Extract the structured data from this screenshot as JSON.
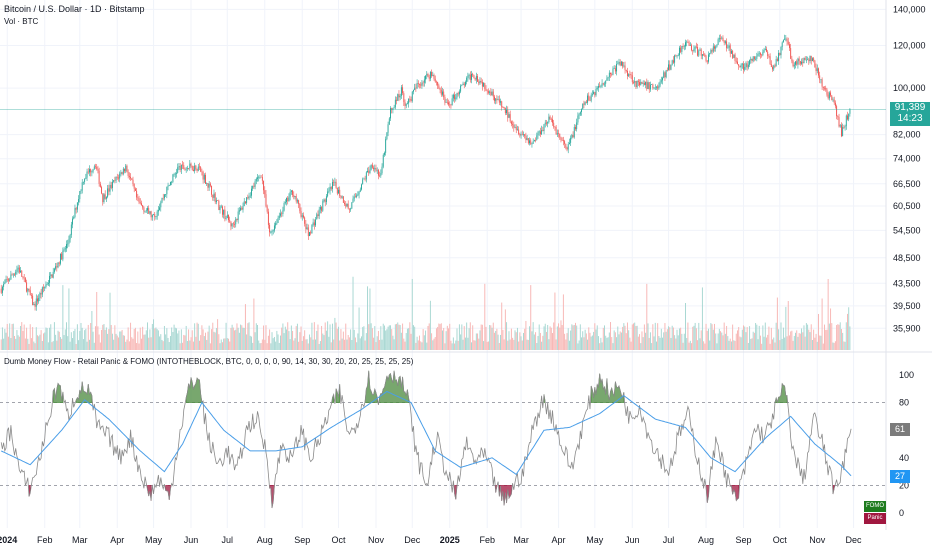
{
  "header": {
    "title": "Bitcoin / U.S. Dollar · 1D · Bitstamp",
    "volume_label": "Vol · BTC",
    "indicator_title": "Dumb Money Flow - Retail Panic & FOMO (INTOTHEBLOCK, BTC, 0, 0, 0, 0, 90, 14, 30, 30, 20, 20, 25, 25, 25, 25)"
  },
  "last_price": {
    "value": "91,389",
    "countdown": "14:23"
  },
  "indicator_values": {
    "current": "61",
    "ma": "27"
  },
  "indicator_legend": {
    "fomo": "FOMO",
    "panic": "Panic"
  },
  "colors": {
    "up": "#26a69a",
    "down": "#ef5350",
    "vol_up": "#a7d7d2",
    "vol_down": "#f7b6b4",
    "line_gray": "#8a8a8a",
    "ma_blue": "#4a9ee8",
    "fomo_fill": "#4b8a3e",
    "panic_fill": "#a0173f",
    "price_line": "#26a69a"
  },
  "chart_data": [
    {
      "type": "candlestick",
      "title": "Bitcoin / U.S. Dollar · 1D · Bitstamp",
      "scale": "log",
      "y_ticks": [
        140000,
        120000,
        100000,
        82000,
        74000,
        66500,
        60500,
        54500,
        48500,
        43500,
        39500,
        35900
      ],
      "y_tick_labels": [
        "140,000",
        "120,000",
        "100,000",
        "82,000",
        "74,000",
        "66,500",
        "60,500",
        "54,500",
        "48,500",
        "43,500",
        "39,500",
        "35,900"
      ],
      "ylim": [
        33000,
        142000
      ],
      "x_tick_labels": [
        "2024",
        "Feb",
        "Mar",
        "Apr",
        "May",
        "Jun",
        "Jul",
        "Aug",
        "Sep",
        "Oct",
        "Nov",
        "Dec",
        "2025",
        "Feb",
        "Mar",
        "Apr",
        "May",
        "Jun",
        "Jul",
        "Aug",
        "Sep",
        "Oct",
        "Nov",
        "Dec"
      ],
      "x_tick_dates": [
        "2024-01-01",
        "2024-02-01",
        "2024-03-01",
        "2024-04-01",
        "2024-05-01",
        "2024-06-01",
        "2024-07-01",
        "2024-08-01",
        "2024-09-01",
        "2024-10-01",
        "2024-11-01",
        "2024-12-01",
        "2025-01-01",
        "2025-02-01",
        "2025-03-01",
        "2025-04-01",
        "2025-05-01",
        "2025-06-01",
        "2025-07-01",
        "2025-08-01",
        "2025-09-01",
        "2025-10-01",
        "2025-11-01",
        "2025-12-01"
      ],
      "close_keypoints": [
        [
          "2023-12-27",
          42500
        ],
        [
          "2024-01-10",
          46500
        ],
        [
          "2024-01-23",
          39500
        ],
        [
          "2024-02-08",
          45500
        ],
        [
          "2024-02-20",
          51500
        ],
        [
          "2024-03-04",
          68000
        ],
        [
          "2024-03-14",
          72500
        ],
        [
          "2024-03-20",
          62500
        ],
        [
          "2024-04-08",
          71500
        ],
        [
          "2024-04-18",
          61500
        ],
        [
          "2024-05-01",
          57500
        ],
        [
          "2024-05-21",
          71000
        ],
        [
          "2024-06-07",
          71500
        ],
        [
          "2024-06-24",
          60500
        ],
        [
          "2024-07-05",
          55500
        ],
        [
          "2024-07-29",
          69500
        ],
        [
          "2024-08-05",
          53500
        ],
        [
          "2024-08-24",
          64500
        ],
        [
          "2024-09-06",
          53500
        ],
        [
          "2024-09-27",
          66500
        ],
        [
          "2024-10-10",
          59500
        ],
        [
          "2024-10-29",
          72500
        ],
        [
          "2024-11-05",
          68500
        ],
        [
          "2024-11-13",
          90500
        ],
        [
          "2024-11-22",
          99000
        ],
        [
          "2024-11-26",
          92500
        ],
        [
          "2024-12-05",
          101000
        ],
        [
          "2024-12-17",
          107000
        ],
        [
          "2024-12-30",
          92500
        ],
        [
          "2025-01-20",
          106500
        ],
        [
          "2025-02-03",
          99000
        ],
        [
          "2025-02-26",
          84000
        ],
        [
          "2025-03-10",
          79000
        ],
        [
          "2025-03-24",
          88000
        ],
        [
          "2025-04-08",
          76500
        ],
        [
          "2025-04-22",
          93500
        ],
        [
          "2025-05-10",
          104000
        ],
        [
          "2025-05-22",
          111500
        ],
        [
          "2025-06-05",
          101500
        ],
        [
          "2025-06-22",
          100500
        ],
        [
          "2025-07-14",
          121500
        ],
        [
          "2025-08-02",
          113500
        ],
        [
          "2025-08-13",
          123500
        ],
        [
          "2025-09-01",
          108500
        ],
        [
          "2025-09-18",
          117500
        ],
        [
          "2025-09-26",
          109000
        ],
        [
          "2025-10-06",
          124500
        ],
        [
          "2025-10-11",
          111500
        ],
        [
          "2025-10-28",
          113000
        ],
        [
          "2025-11-05",
          101000
        ],
        [
          "2025-11-14",
          94500
        ],
        [
          "2025-11-21",
          82500
        ],
        [
          "2025-11-28",
          91389
        ]
      ],
      "last_price": 91389
    },
    {
      "type": "area",
      "title": "Dumb Money Flow - Retail Panic & FOMO (INTOTHEBLOCK, BTC, 0, 0, 0, 0, 90, 14, 30, 30, 20, 20, 25, 25, 25, 25)",
      "y_ticks": [
        0,
        20,
        40,
        60,
        80,
        100
      ],
      "ylim": [
        -5,
        105
      ],
      "upper_threshold": 80,
      "lower_threshold": 20,
      "series": [
        {
          "role": "flow",
          "keypoints": [
            [
              "2023-12-27",
              45
            ],
            [
              "2024-01-04",
              60
            ],
            [
              "2024-01-12",
              28
            ],
            [
              "2024-01-20",
              17
            ],
            [
              "2024-01-28",
              40
            ],
            [
              "2024-02-05",
              72
            ],
            [
              "2024-02-12",
              95
            ],
            [
              "2024-02-20",
              70
            ],
            [
              "2024-02-28",
              88
            ],
            [
              "2024-03-08",
              90
            ],
            [
              "2024-03-16",
              62
            ],
            [
              "2024-03-25",
              55
            ],
            [
              "2024-04-03",
              40
            ],
            [
              "2024-04-12",
              55
            ],
            [
              "2024-04-20",
              30
            ],
            [
              "2024-04-28",
              13
            ],
            [
              "2024-05-06",
              25
            ],
            [
              "2024-05-14",
              10
            ],
            [
              "2024-05-22",
              55
            ],
            [
              "2024-05-30",
              90
            ],
            [
              "2024-06-07",
              98
            ],
            [
              "2024-06-15",
              55
            ],
            [
              "2024-06-23",
              35
            ],
            [
              "2024-07-01",
              45
            ],
            [
              "2024-07-09",
              30
            ],
            [
              "2024-07-17",
              60
            ],
            [
              "2024-07-25",
              70
            ],
            [
              "2024-08-02",
              45
            ],
            [
              "2024-08-07",
              10
            ],
            [
              "2024-08-15",
              50
            ],
            [
              "2024-08-23",
              38
            ],
            [
              "2024-08-31",
              60
            ],
            [
              "2024-09-08",
              40
            ],
            [
              "2024-09-16",
              55
            ],
            [
              "2024-09-24",
              75
            ],
            [
              "2024-10-02",
              88
            ],
            [
              "2024-10-10",
              55
            ],
            [
              "2024-10-18",
              70
            ],
            [
              "2024-10-26",
              98
            ],
            [
              "2024-11-03",
              80
            ],
            [
              "2024-11-11",
              102
            ],
            [
              "2024-11-19",
              99
            ],
            [
              "2024-11-27",
              85
            ],
            [
              "2024-12-05",
              40
            ],
            [
              "2024-12-13",
              20
            ],
            [
              "2024-12-21",
              55
            ],
            [
              "2024-12-29",
              30
            ],
            [
              "2025-01-06",
              12
            ],
            [
              "2025-01-14",
              50
            ],
            [
              "2025-01-22",
              38
            ],
            [
              "2025-01-30",
              42
            ],
            [
              "2025-02-07",
              22
            ],
            [
              "2025-02-15",
              8
            ],
            [
              "2025-02-23",
              20
            ],
            [
              "2025-03-03",
              30
            ],
            [
              "2025-03-11",
              62
            ],
            [
              "2025-03-19",
              82
            ],
            [
              "2025-03-27",
              70
            ],
            [
              "2025-04-04",
              48
            ],
            [
              "2025-04-12",
              32
            ],
            [
              "2025-04-20",
              60
            ],
            [
              "2025-04-28",
              85
            ],
            [
              "2025-05-06",
              98
            ],
            [
              "2025-05-14",
              86
            ],
            [
              "2025-05-22",
              92
            ],
            [
              "2025-05-30",
              68
            ],
            [
              "2025-06-07",
              78
            ],
            [
              "2025-06-15",
              55
            ],
            [
              "2025-06-23",
              42
            ],
            [
              "2025-07-01",
              30
            ],
            [
              "2025-07-09",
              55
            ],
            [
              "2025-07-17",
              72
            ],
            [
              "2025-07-25",
              40
            ],
            [
              "2025-08-02",
              12
            ],
            [
              "2025-08-10",
              55
            ],
            [
              "2025-08-18",
              25
            ],
            [
              "2025-08-26",
              8
            ],
            [
              "2025-09-03",
              35
            ],
            [
              "2025-09-11",
              62
            ],
            [
              "2025-09-19",
              55
            ],
            [
              "2025-09-27",
              75
            ],
            [
              "2025-10-05",
              92
            ],
            [
              "2025-10-13",
              40
            ],
            [
              "2025-10-21",
              25
            ],
            [
              "2025-10-29",
              70
            ],
            [
              "2025-11-06",
              48
            ],
            [
              "2025-11-14",
              18
            ],
            [
              "2025-11-21",
              30
            ],
            [
              "2025-11-25",
              45
            ],
            [
              "2025-11-29",
              61
            ]
          ]
        },
        {
          "role": "moving average",
          "keypoints": [
            [
              "2023-12-27",
              45
            ],
            [
              "2024-01-20",
              35
            ],
            [
              "2024-02-15",
              60
            ],
            [
              "2024-03-05",
              82
            ],
            [
              "2024-03-25",
              68
            ],
            [
              "2024-04-20",
              45
            ],
            [
              "2024-05-10",
              30
            ],
            [
              "2024-05-25",
              50
            ],
            [
              "2024-06-10",
              80
            ],
            [
              "2024-06-28",
              60
            ],
            [
              "2024-07-20",
              45
            ],
            [
              "2024-08-10",
              45
            ],
            [
              "2024-09-01",
              48
            ],
            [
              "2024-09-25",
              62
            ],
            [
              "2024-10-20",
              75
            ],
            [
              "2024-11-10",
              88
            ],
            [
              "2024-11-30",
              80
            ],
            [
              "2024-12-20",
              45
            ],
            [
              "2025-01-10",
              33
            ],
            [
              "2025-02-05",
              40
            ],
            [
              "2025-02-25",
              28
            ],
            [
              "2025-03-20",
              60
            ],
            [
              "2025-04-10",
              62
            ],
            [
              "2025-05-05",
              72
            ],
            [
              "2025-05-25",
              85
            ],
            [
              "2025-06-20",
              68
            ],
            [
              "2025-07-15",
              62
            ],
            [
              "2025-08-05",
              40
            ],
            [
              "2025-08-25",
              30
            ],
            [
              "2025-09-20",
              55
            ],
            [
              "2025-10-10",
              70
            ],
            [
              "2025-10-30",
              50
            ],
            [
              "2025-11-20",
              35
            ],
            [
              "2025-11-29",
              27
            ]
          ]
        }
      ],
      "current_value": 61,
      "ma_value": 27,
      "legend": [
        "FOMO",
        "Panic"
      ]
    }
  ]
}
